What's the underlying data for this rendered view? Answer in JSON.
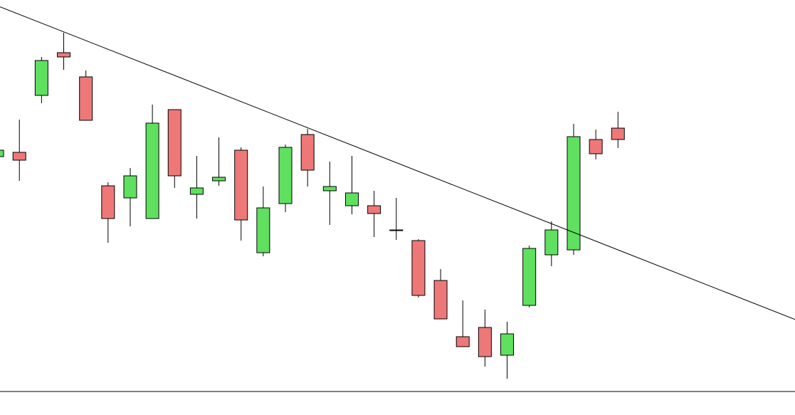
{
  "chart_data": {
    "type": "candlestick",
    "categories": [
      null,
      null,
      null,
      null,
      null,
      null,
      null,
      null,
      null,
      null,
      null,
      null,
      null,
      null,
      null,
      null,
      null,
      null,
      null,
      null,
      null,
      null,
      null,
      null,
      null,
      null,
      null,
      null,
      null
    ],
    "open": [
      330,
      336,
      416,
      476,
      442,
      289,
      272,
      243,
      396,
      277,
      296,
      339,
      195,
      264,
      361,
      282,
      261,
      261,
      227,
      212,
      156,
      77,
      90,
      51,
      121,
      192,
      199,
      354,
      370
    ],
    "high": [
      342,
      382,
      470,
      504,
      451,
      294,
      314,
      403,
      396,
      331,
      357,
      343,
      288,
      347,
      369,
      323,
      331,
      282,
      272,
      214,
      172,
      128,
      115,
      98,
      205,
      239,
      376,
      368,
      393
    ],
    "low": [
      328,
      296,
      405,
      452,
      381,
      209,
      232,
      243,
      286,
      243,
      289,
      212,
      190,
      252,
      288,
      234,
      249,
      217,
      213,
      132,
      102,
      63,
      35,
      18,
      118,
      176,
      192,
      326,
      342
    ],
    "close": [
      339,
      325,
      465,
      470,
      381,
      243,
      303,
      377,
      303,
      286,
      301,
      241,
      258,
      343,
      311,
      288,
      279,
      250,
      226,
      135,
      102,
      63,
      49,
      81,
      201,
      227,
      358,
      334,
      354
    ],
    "up_color": "#5fe05f",
    "down_color": "#ee7878",
    "ylim": [
      0,
      550
    ],
    "trendline": [
      542,
      199
    ]
  }
}
